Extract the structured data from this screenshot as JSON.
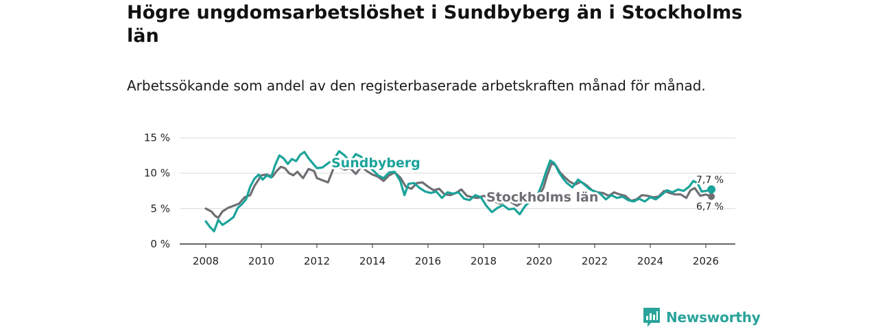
{
  "chart_data": {
    "type": "line",
    "title": "Högre ungdomsarbetslöshet i Sundbyberg än i Stockholms län",
    "subtitle": "Arbetssökande som andel av den registerbaserade arbetskraften månad för månad.",
    "xlabel": "",
    "ylabel": "",
    "ylim": [
      0,
      15
    ],
    "xlim": [
      2007.5,
      2027.0
    ],
    "y_ticks": [
      {
        "value": 0,
        "label": "0 %"
      },
      {
        "value": 5,
        "label": "5 %"
      },
      {
        "value": 10,
        "label": "10 %"
      },
      {
        "value": 15,
        "label": "15 %"
      }
    ],
    "x_ticks": [
      {
        "value": 2008,
        "label": "2008"
      },
      {
        "value": 2010,
        "label": "2010"
      },
      {
        "value": 2012,
        "label": "2012"
      },
      {
        "value": 2014,
        "label": "2014"
      },
      {
        "value": 2016,
        "label": "2016"
      },
      {
        "value": 2018,
        "label": "2018"
      },
      {
        "value": 2020,
        "label": "2020"
      },
      {
        "value": 2022,
        "label": "2022"
      },
      {
        "value": 2024,
        "label": "2024"
      },
      {
        "value": 2026,
        "label": "2026"
      }
    ],
    "grid": true,
    "series": [
      {
        "name": "Stockholms län",
        "label": "Stockholms län",
        "color": "#6e6e73",
        "end_value": 6.7,
        "end_label": "6,7 %",
        "points": [
          [
            2008.0,
            5.0
          ],
          [
            2008.2,
            4.6
          ],
          [
            2008.33,
            4.0
          ],
          [
            2008.45,
            3.7
          ],
          [
            2008.6,
            4.6
          ],
          [
            2008.8,
            5.1
          ],
          [
            2009.0,
            5.4
          ],
          [
            2009.2,
            5.7
          ],
          [
            2009.4,
            6.6
          ],
          [
            2009.6,
            6.9
          ],
          [
            2009.75,
            8.2
          ],
          [
            2009.9,
            9.1
          ],
          [
            2010.0,
            9.7
          ],
          [
            2010.2,
            9.8
          ],
          [
            2010.4,
            9.5
          ],
          [
            2010.55,
            10.3
          ],
          [
            2010.7,
            10.9
          ],
          [
            2010.85,
            10.7
          ],
          [
            2011.0,
            10.0
          ],
          [
            2011.15,
            9.7
          ],
          [
            2011.3,
            10.2
          ],
          [
            2011.5,
            9.3
          ],
          [
            2011.7,
            10.6
          ],
          [
            2011.9,
            10.3
          ],
          [
            2012.0,
            9.3
          ],
          [
            2012.2,
            9.0
          ],
          [
            2012.4,
            8.7
          ],
          [
            2012.6,
            10.7
          ],
          [
            2012.8,
            10.9
          ],
          [
            2013.0,
            10.5
          ],
          [
            2013.2,
            10.7
          ],
          [
            2013.4,
            9.9
          ],
          [
            2013.6,
            10.9
          ],
          [
            2013.8,
            10.3
          ],
          [
            2014.0,
            9.8
          ],
          [
            2014.2,
            9.5
          ],
          [
            2014.4,
            8.9
          ],
          [
            2014.6,
            9.7
          ],
          [
            2014.8,
            10.1
          ],
          [
            2015.0,
            9.4
          ],
          [
            2015.2,
            8.1
          ],
          [
            2015.4,
            7.8
          ],
          [
            2015.6,
            8.6
          ],
          [
            2015.8,
            8.7
          ],
          [
            2016.0,
            8.1
          ],
          [
            2016.2,
            7.6
          ],
          [
            2016.4,
            7.8
          ],
          [
            2016.6,
            7.0
          ],
          [
            2016.8,
            6.9
          ],
          [
            2017.0,
            7.2
          ],
          [
            2017.2,
            7.7
          ],
          [
            2017.4,
            6.8
          ],
          [
            2017.6,
            6.6
          ],
          [
            2017.8,
            6.5
          ],
          [
            2018.0,
            6.8
          ],
          [
            2018.2,
            6.6
          ],
          [
            2018.4,
            6.0
          ],
          [
            2018.6,
            5.7
          ],
          [
            2018.8,
            6.1
          ],
          [
            2019.0,
            5.9
          ],
          [
            2019.2,
            5.4
          ],
          [
            2019.4,
            5.9
          ],
          [
            2019.6,
            5.9
          ],
          [
            2019.8,
            6.2
          ],
          [
            2020.0,
            6.9
          ],
          [
            2020.15,
            7.9
          ],
          [
            2020.3,
            9.8
          ],
          [
            2020.45,
            11.4
          ],
          [
            2020.6,
            11.1
          ],
          [
            2020.75,
            10.1
          ],
          [
            2020.9,
            9.5
          ],
          [
            2021.1,
            8.8
          ],
          [
            2021.3,
            8.4
          ],
          [
            2021.5,
            8.8
          ],
          [
            2021.7,
            8.3
          ],
          [
            2021.9,
            7.6
          ],
          [
            2022.1,
            7.3
          ],
          [
            2022.3,
            7.2
          ],
          [
            2022.5,
            6.8
          ],
          [
            2022.7,
            7.3
          ],
          [
            2022.9,
            7.0
          ],
          [
            2023.1,
            6.8
          ],
          [
            2023.3,
            6.1
          ],
          [
            2023.5,
            6.3
          ],
          [
            2023.7,
            6.9
          ],
          [
            2023.9,
            6.8
          ],
          [
            2024.1,
            6.6
          ],
          [
            2024.3,
            6.7
          ],
          [
            2024.5,
            7.5
          ],
          [
            2024.7,
            7.2
          ],
          [
            2024.9,
            7.0
          ],
          [
            2025.1,
            7.0
          ],
          [
            2025.3,
            6.5
          ],
          [
            2025.45,
            7.6
          ],
          [
            2025.6,
            7.9
          ],
          [
            2025.8,
            6.8
          ],
          [
            2026.0,
            7.0
          ],
          [
            2026.2,
            6.7
          ]
        ]
      },
      {
        "name": "Sundbyberg",
        "label": "Sundbyberg",
        "color": "#1aa39a",
        "end_value": 7.7,
        "end_label": "7,7 %",
        "points": [
          [
            2008.0,
            3.2
          ],
          [
            2008.15,
            2.4
          ],
          [
            2008.3,
            1.8
          ],
          [
            2008.45,
            3.4
          ],
          [
            2008.6,
            2.7
          ],
          [
            2008.8,
            3.2
          ],
          [
            2009.0,
            3.8
          ],
          [
            2009.15,
            5.1
          ],
          [
            2009.3,
            5.6
          ],
          [
            2009.45,
            6.3
          ],
          [
            2009.6,
            8.1
          ],
          [
            2009.75,
            9.2
          ],
          [
            2009.9,
            9.8
          ],
          [
            2010.05,
            9.1
          ],
          [
            2010.2,
            9.7
          ],
          [
            2010.35,
            9.4
          ],
          [
            2010.5,
            11.2
          ],
          [
            2010.65,
            12.5
          ],
          [
            2010.8,
            12.1
          ],
          [
            2010.95,
            11.3
          ],
          [
            2011.1,
            12.0
          ],
          [
            2011.25,
            11.7
          ],
          [
            2011.4,
            12.6
          ],
          [
            2011.55,
            13.0
          ],
          [
            2011.7,
            12.1
          ],
          [
            2011.85,
            11.4
          ],
          [
            2012.0,
            10.7
          ],
          [
            2012.2,
            10.8
          ],
          [
            2012.4,
            11.4
          ],
          [
            2012.6,
            11.9
          ],
          [
            2012.8,
            13.1
          ],
          [
            2013.0,
            12.5
          ],
          [
            2013.2,
            11.6
          ],
          [
            2013.4,
            12.7
          ],
          [
            2013.6,
            12.3
          ],
          [
            2013.8,
            11.0
          ],
          [
            2014.0,
            10.5
          ],
          [
            2014.2,
            9.7
          ],
          [
            2014.4,
            9.3
          ],
          [
            2014.6,
            10.1
          ],
          [
            2014.8,
            10.2
          ],
          [
            2015.0,
            8.9
          ],
          [
            2015.15,
            6.9
          ],
          [
            2015.3,
            8.5
          ],
          [
            2015.5,
            8.6
          ],
          [
            2015.7,
            7.9
          ],
          [
            2015.9,
            7.4
          ],
          [
            2016.1,
            7.2
          ],
          [
            2016.3,
            7.4
          ],
          [
            2016.5,
            6.5
          ],
          [
            2016.7,
            7.3
          ],
          [
            2016.9,
            7.1
          ],
          [
            2017.1,
            7.3
          ],
          [
            2017.3,
            6.4
          ],
          [
            2017.5,
            6.2
          ],
          [
            2017.7,
            6.9
          ],
          [
            2017.9,
            6.6
          ],
          [
            2018.1,
            5.4
          ],
          [
            2018.3,
            4.5
          ],
          [
            2018.5,
            5.1
          ],
          [
            2018.7,
            5.5
          ],
          [
            2018.9,
            4.9
          ],
          [
            2019.1,
            5.0
          ],
          [
            2019.3,
            4.2
          ],
          [
            2019.5,
            5.4
          ],
          [
            2019.7,
            6.1
          ],
          [
            2019.9,
            6.5
          ],
          [
            2020.1,
            8.4
          ],
          [
            2020.25,
            10.2
          ],
          [
            2020.4,
            11.8
          ],
          [
            2020.55,
            11.4
          ],
          [
            2020.7,
            10.2
          ],
          [
            2020.85,
            9.3
          ],
          [
            2021.0,
            8.6
          ],
          [
            2021.2,
            8.0
          ],
          [
            2021.4,
            9.1
          ],
          [
            2021.6,
            8.5
          ],
          [
            2021.8,
            7.8
          ],
          [
            2022.0,
            7.4
          ],
          [
            2022.2,
            7.1
          ],
          [
            2022.4,
            6.3
          ],
          [
            2022.6,
            6.9
          ],
          [
            2022.8,
            6.5
          ],
          [
            2023.0,
            6.7
          ],
          [
            2023.2,
            6.2
          ],
          [
            2023.4,
            6.0
          ],
          [
            2023.6,
            6.4
          ],
          [
            2023.8,
            6.0
          ],
          [
            2024.0,
            6.6
          ],
          [
            2024.2,
            6.3
          ],
          [
            2024.4,
            6.9
          ],
          [
            2024.6,
            7.6
          ],
          [
            2024.8,
            7.3
          ],
          [
            2025.0,
            7.7
          ],
          [
            2025.2,
            7.5
          ],
          [
            2025.4,
            8.1
          ],
          [
            2025.55,
            8.9
          ],
          [
            2025.7,
            8.6
          ],
          [
            2025.85,
            7.4
          ],
          [
            2026.0,
            7.5
          ],
          [
            2026.2,
            7.7
          ]
        ]
      }
    ]
  },
  "brand": {
    "name": "Newsworthy",
    "icon": "bar-chart-speech-bubble-icon",
    "color": "#2aa39a"
  }
}
